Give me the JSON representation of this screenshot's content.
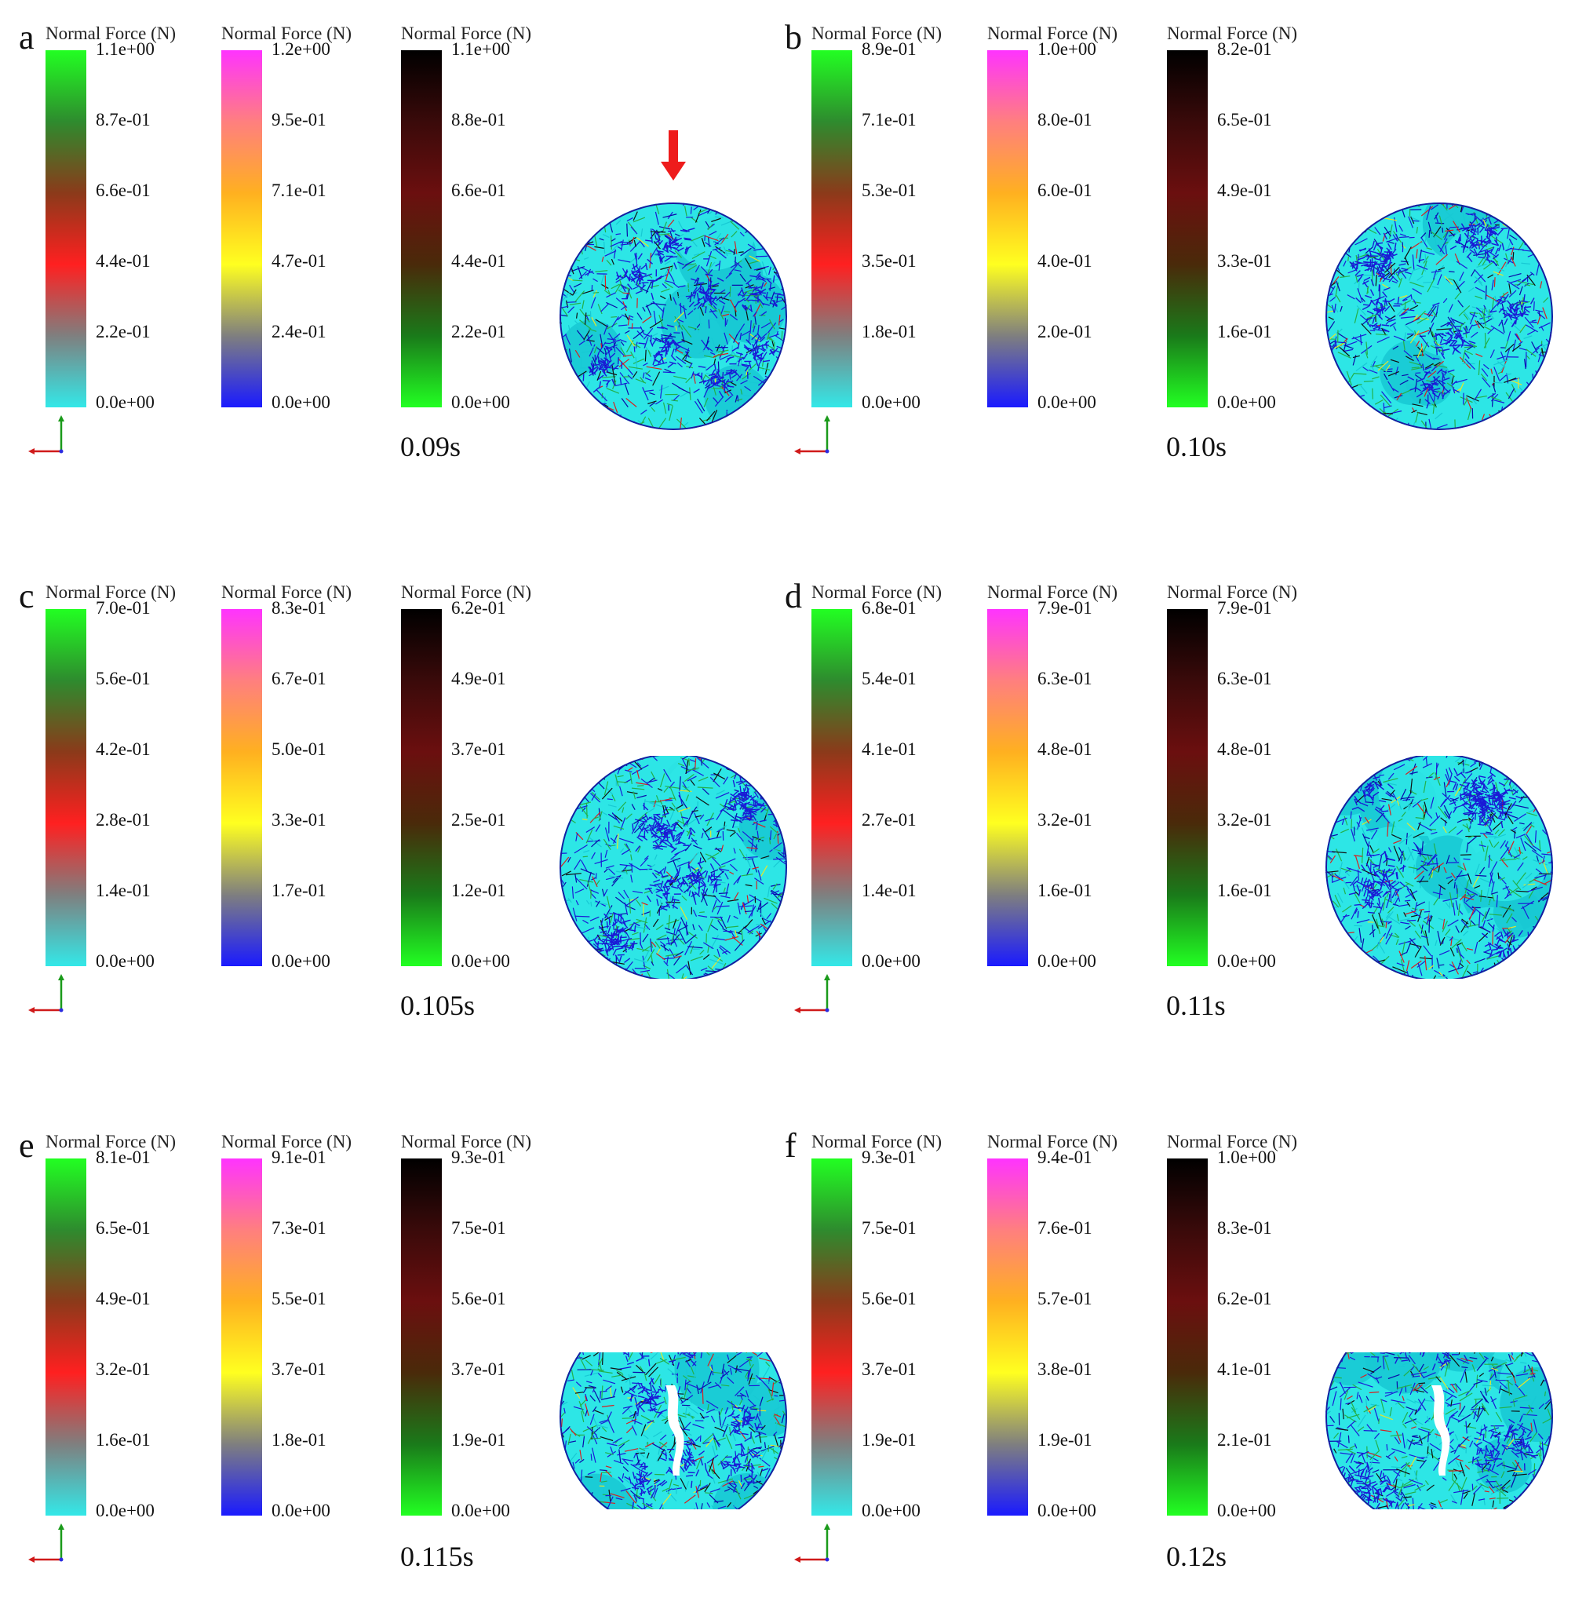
{
  "panels": [
    {
      "letter": "a",
      "time": "0.09s",
      "shape": "circle",
      "arrow": true,
      "legends": [
        {
          "title": "Normal Force (N)",
          "scale": "green",
          "ticks": [
            "1.1e+00",
            "8.7e-01",
            "6.6e-01",
            "4.4e-01",
            "2.2e-01",
            "0.0e+00"
          ]
        },
        {
          "title": "Normal Force (N)",
          "scale": "magenta",
          "ticks": [
            "1.2e+00",
            "9.5e-01",
            "7.1e-01",
            "4.7e-01",
            "2.4e-01",
            "0.0e+00"
          ]
        },
        {
          "title": "Normal Force (N)",
          "scale": "black",
          "ticks": [
            "1.1e+00",
            "8.8e-01",
            "6.6e-01",
            "4.4e-01",
            "2.2e-01",
            "0.0e+00"
          ]
        }
      ]
    },
    {
      "letter": "b",
      "time": "0.10s",
      "shape": "circle",
      "arrow": false,
      "legends": [
        {
          "title": "Normal Force (N)",
          "scale": "green",
          "ticks": [
            "8.9e-01",
            "7.1e-01",
            "5.3e-01",
            "3.5e-01",
            "1.8e-01",
            "0.0e+00"
          ]
        },
        {
          "title": "Normal Force (N)",
          "scale": "magenta",
          "ticks": [
            "1.0e+00",
            "8.0e-01",
            "6.0e-01",
            "4.0e-01",
            "2.0e-01",
            "0.0e+00"
          ]
        },
        {
          "title": "Normal Force (N)",
          "scale": "black",
          "ticks": [
            "8.2e-01",
            "6.5e-01",
            "4.9e-01",
            "3.3e-01",
            "1.6e-01",
            "0.0e+00"
          ]
        }
      ]
    },
    {
      "letter": "c",
      "time": "0.105s",
      "shape": "clipped1",
      "arrow": false,
      "legends": [
        {
          "title": "Normal Force (N)",
          "scale": "green",
          "ticks": [
            "7.0e-01",
            "5.6e-01",
            "4.2e-01",
            "2.8e-01",
            "1.4e-01",
            "0.0e+00"
          ]
        },
        {
          "title": "Normal Force (N)",
          "scale": "magenta",
          "ticks": [
            "8.3e-01",
            "6.7e-01",
            "5.0e-01",
            "3.3e-01",
            "1.7e-01",
            "0.0e+00"
          ]
        },
        {
          "title": "Normal Force (N)",
          "scale": "black",
          "ticks": [
            "6.2e-01",
            "4.9e-01",
            "3.7e-01",
            "2.5e-01",
            "1.2e-01",
            "0.0e+00"
          ]
        }
      ]
    },
    {
      "letter": "d",
      "time": "0.11s",
      "shape": "clipped1",
      "arrow": false,
      "legends": [
        {
          "title": "Normal Force (N)",
          "scale": "green",
          "ticks": [
            "6.8e-01",
            "5.4e-01",
            "4.1e-01",
            "2.7e-01",
            "1.4e-01",
            "0.0e+00"
          ]
        },
        {
          "title": "Normal Force (N)",
          "scale": "magenta",
          "ticks": [
            "7.9e-01",
            "6.3e-01",
            "4.8e-01",
            "3.2e-01",
            "1.6e-01",
            "0.0e+00"
          ]
        },
        {
          "title": "Normal Force (N)",
          "scale": "black",
          "ticks": [
            "7.9e-01",
            "6.3e-01",
            "4.8e-01",
            "3.2e-01",
            "1.6e-01",
            "0.0e+00"
          ]
        }
      ]
    },
    {
      "letter": "e",
      "time": "0.115s",
      "shape": "clipped2",
      "arrow": false,
      "legends": [
        {
          "title": "Normal Force (N)",
          "scale": "green",
          "ticks": [
            "8.1e-01",
            "6.5e-01",
            "4.9e-01",
            "3.2e-01",
            "1.6e-01",
            "0.0e+00"
          ]
        },
        {
          "title": "Normal Force (N)",
          "scale": "magenta",
          "ticks": [
            "9.1e-01",
            "7.3e-01",
            "5.5e-01",
            "3.7e-01",
            "1.8e-01",
            "0.0e+00"
          ]
        },
        {
          "title": "Normal Force (N)",
          "scale": "black",
          "ticks": [
            "9.3e-01",
            "7.5e-01",
            "5.6e-01",
            "3.7e-01",
            "1.9e-01",
            "0.0e+00"
          ]
        }
      ]
    },
    {
      "letter": "f",
      "time": "0.12s",
      "shape": "clipped2",
      "arrow": false,
      "legends": [
        {
          "title": "Normal Force (N)",
          "scale": "green",
          "ticks": [
            "9.3e-01",
            "7.5e-01",
            "5.6e-01",
            "3.7e-01",
            "1.9e-01",
            "0.0e+00"
          ]
        },
        {
          "title": "Normal Force (N)",
          "scale": "magenta",
          "ticks": [
            "9.4e-01",
            "7.6e-01",
            "5.7e-01",
            "3.8e-01",
            "1.9e-01",
            "0.0e+00"
          ]
        },
        {
          "title": "Normal Force (N)",
          "scale": "black",
          "ticks": [
            "1.0e+00",
            "8.3e-01",
            "6.2e-01",
            "4.1e-01",
            "2.1e-01",
            "0.0e+00"
          ]
        }
      ]
    }
  ],
  "colors": {
    "arrow": "#ee1c1c",
    "particles": [
      "#2de6e6",
      "#18c9d4",
      "#22b04a",
      "#1a1ad6",
      "#0a0aa8",
      "#d62020",
      "#111111",
      "#e6e62a"
    ],
    "green_scale": [
      "#22ff22",
      "#2e8b2e",
      "#8b3a1a",
      "#ff2020",
      "#7f7f7f",
      "#33e8e8"
    ],
    "magenta_scale": [
      "#ff33ff",
      "#ff7f7f",
      "#ffb020",
      "#ffff20",
      "#7f7f7f",
      "#1a1aff"
    ],
    "black_scale": [
      "#000000",
      "#3a0a0a",
      "#6b0f0f",
      "#4a2a0a",
      "#1a7a1a",
      "#22ff22"
    ]
  }
}
